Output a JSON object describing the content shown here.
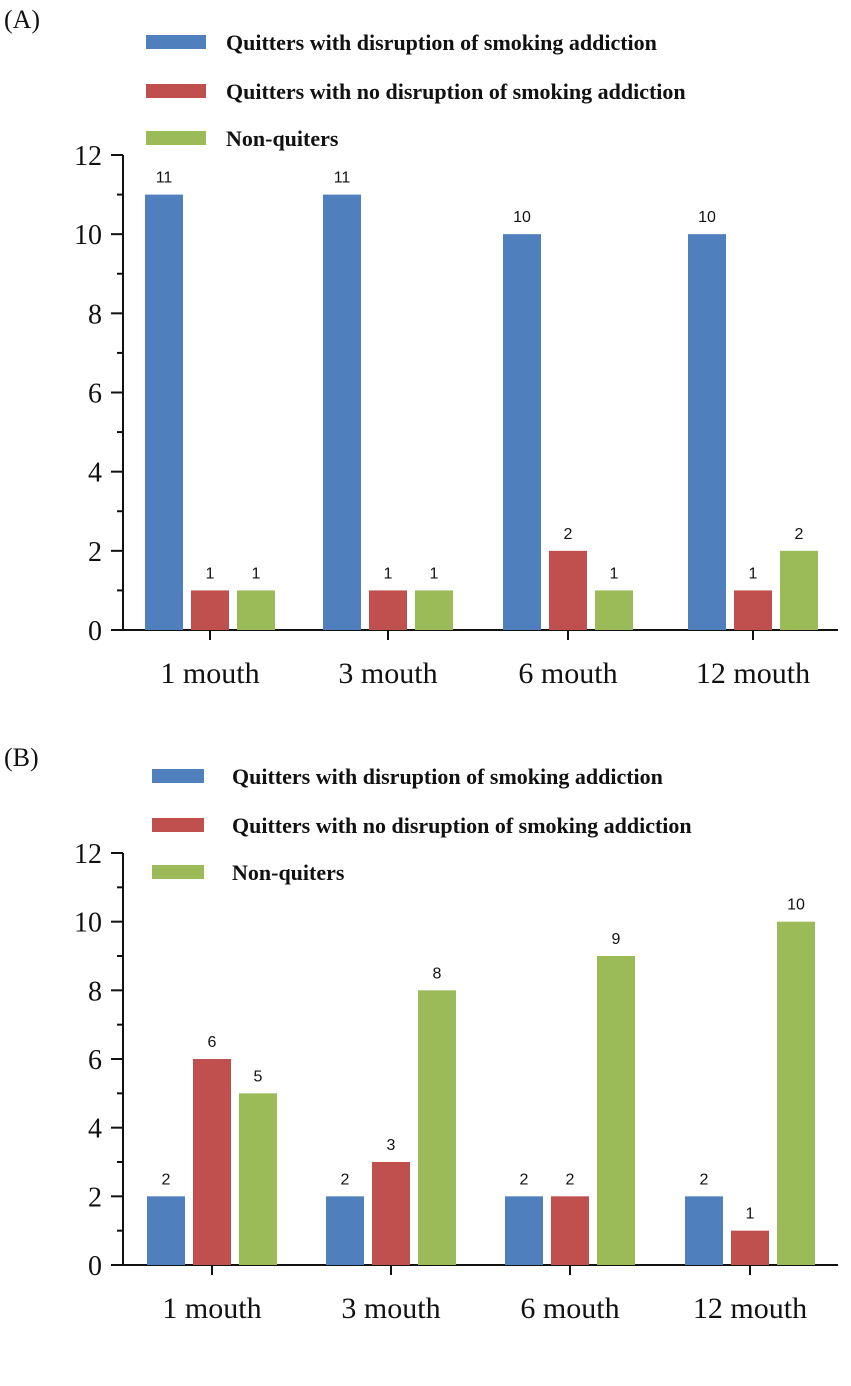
{
  "chart_data": [
    {
      "panel_label": "(A)",
      "type": "bar",
      "categories": [
        "1 mouth",
        "3 mouth",
        "6 mouth",
        "12 mouth"
      ],
      "series": [
        {
          "name": "Quitters with disruption of smoking addiction",
          "color": "#4f7fbd",
          "values": [
            11,
            11,
            10,
            10
          ]
        },
        {
          "name": "Quitters with no disruption of smoking addiction",
          "color": "#c0504d",
          "values": [
            1,
            1,
            2,
            1
          ]
        },
        {
          "name": "Non-quiters",
          "color": "#9bbb59",
          "values": [
            1,
            1,
            1,
            2
          ]
        }
      ],
      "ylim": [
        0,
        12
      ],
      "yticks": [
        0,
        2,
        4,
        6,
        8,
        10,
        12
      ],
      "xlabel": "",
      "ylabel": "",
      "legend": "top"
    },
    {
      "panel_label": "(B)",
      "type": "bar",
      "categories": [
        "1 mouth",
        "3 mouth",
        "6 mouth",
        "12 mouth"
      ],
      "series": [
        {
          "name": "Quitters with disruption of smoking addiction",
          "color": "#4f7fbd",
          "values": [
            2,
            2,
            2,
            2
          ]
        },
        {
          "name": "Quitters with no disruption of smoking addiction",
          "color": "#c0504d",
          "values": [
            6,
            3,
            2,
            1
          ]
        },
        {
          "name": "Non-quiters",
          "color": "#9bbb59",
          "values": [
            5,
            8,
            9,
            10
          ]
        }
      ],
      "ylim": [
        0,
        12
      ],
      "yticks": [
        0,
        2,
        4,
        6,
        8,
        10,
        12
      ],
      "xlabel": "",
      "ylabel": "",
      "legend": "top"
    }
  ]
}
